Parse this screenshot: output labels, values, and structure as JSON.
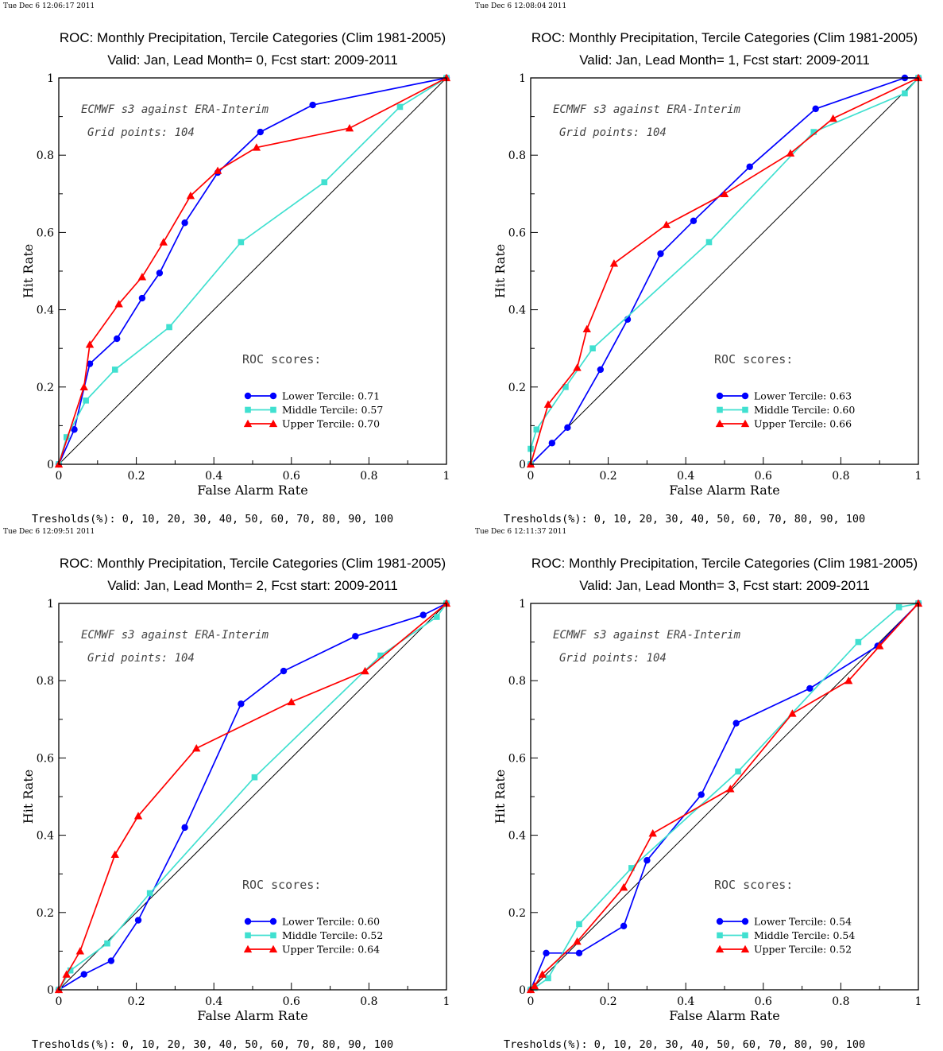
{
  "chart_data": [
    {
      "type": "line",
      "timestamp": "Tue Dec  6 12:06:17 2011",
      "title": "ROC: Monthly Precipitation, Tercile Categories (Clim 1981-2005)",
      "subtitle": "Valid: Jan, Lead Month= 0, Fcst start: 2009-2011",
      "xlabel": "False Alarm Rate",
      "ylabel": "Hit Rate",
      "xlim": [
        0,
        1
      ],
      "ylim": [
        0,
        1
      ],
      "x_ticks": [
        "0",
        "0.2",
        "0.4",
        "0.6",
        "0.8",
        "1"
      ],
      "y_ticks": [
        "0",
        "0.2",
        "0.4",
        "0.6",
        "0.8",
        "1"
      ],
      "annotation_1": "ECMWF s3 against ERA-Interim",
      "annotation_2": "Grid points:  104",
      "legend_title": "ROC scores:",
      "legend_position": "lower-right",
      "thresholds": "Tresholds(%): 0, 10, 20, 30, 40, 50, 60, 70, 80, 90, 100",
      "series": [
        {
          "label": "Lower Tercile: 0.71",
          "color": "#0000ff",
          "marker": "circle",
          "x": [
            0,
            0.04,
            0.08,
            0.15,
            0.215,
            0.26,
            0.325,
            0.41,
            0.52,
            0.655,
            1.0
          ],
          "y": [
            0,
            0.09,
            0.26,
            0.325,
            0.43,
            0.495,
            0.625,
            0.755,
            0.86,
            0.93,
            1.0
          ]
        },
        {
          "label": "Middle Tercile: 0.57",
          "color": "#40e0d0",
          "marker": "square",
          "x": [
            0,
            0.02,
            0.07,
            0.145,
            0.285,
            0.47,
            0.685,
            0.88,
            1.0
          ],
          "y": [
            0,
            0.07,
            0.165,
            0.245,
            0.355,
            0.575,
            0.73,
            0.925,
            1.0
          ]
        },
        {
          "label": "Upper Tercile: 0.70",
          "color": "#ff0000",
          "marker": "triangle",
          "x": [
            0,
            0.065,
            0.08,
            0.155,
            0.215,
            0.27,
            0.34,
            0.41,
            0.51,
            0.75,
            1.0
          ],
          "y": [
            0,
            0.2,
            0.31,
            0.415,
            0.485,
            0.575,
            0.695,
            0.76,
            0.82,
            0.87,
            1.0
          ]
        }
      ]
    },
    {
      "type": "line",
      "timestamp": "Tue Dec  6 12:08:04 2011",
      "title": "ROC: Monthly Precipitation, Tercile Categories (Clim 1981-2005)",
      "subtitle": "Valid: Jan, Lead Month= 1, Fcst start: 2009-2011",
      "xlabel": "False Alarm Rate",
      "ylabel": "Hit Rate",
      "xlim": [
        0,
        1
      ],
      "ylim": [
        0,
        1
      ],
      "x_ticks": [
        "0",
        "0.2",
        "0.4",
        "0.6",
        "0.8",
        "1"
      ],
      "y_ticks": [
        "0",
        "0.2",
        "0.4",
        "0.6",
        "0.8",
        "1"
      ],
      "annotation_1": "ECMWF s3 against ERA-Interim",
      "annotation_2": "Grid points:  104",
      "legend_title": "ROC scores:",
      "legend_position": "lower-right",
      "thresholds": "Tresholds(%): 0, 10, 20, 30, 40, 50, 60, 70, 80, 90, 100",
      "series": [
        {
          "label": "Lower Tercile: 0.63",
          "color": "#0000ff",
          "marker": "circle",
          "x": [
            0,
            0.055,
            0.095,
            0.18,
            0.25,
            0.335,
            0.42,
            0.565,
            0.735,
            0.965,
            1.0
          ],
          "y": [
            0,
            0.055,
            0.095,
            0.245,
            0.375,
            0.545,
            0.63,
            0.77,
            0.92,
            1.0,
            1.0
          ]
        },
        {
          "label": "Middle Tercile: 0.60",
          "color": "#40e0d0",
          "marker": "square",
          "x": [
            0,
            0.0,
            0.015,
            0.09,
            0.16,
            0.46,
            0.73,
            0.965,
            1.0
          ],
          "y": [
            0,
            0.04,
            0.09,
            0.2,
            0.3,
            0.575,
            0.86,
            0.96,
            1.0
          ]
        },
        {
          "label": "Upper Tercile: 0.66",
          "color": "#ff0000",
          "marker": "triangle",
          "x": [
            0,
            0.045,
            0.12,
            0.145,
            0.215,
            0.35,
            0.5,
            0.67,
            0.78,
            1.0
          ],
          "y": [
            0,
            0.155,
            0.25,
            0.35,
            0.52,
            0.62,
            0.7,
            0.805,
            0.895,
            1.0
          ]
        }
      ]
    },
    {
      "type": "line",
      "timestamp": "Tue Dec  6 12:09:51 2011",
      "title": "ROC: Monthly Precipitation, Tercile Categories (Clim 1981-2005)",
      "subtitle": "Valid: Jan, Lead Month= 2, Fcst start: 2009-2011",
      "xlabel": "False Alarm Rate",
      "ylabel": "Hit Rate",
      "xlim": [
        0,
        1
      ],
      "ylim": [
        0,
        1
      ],
      "x_ticks": [
        "0",
        "0.2",
        "0.4",
        "0.6",
        "0.8",
        "1"
      ],
      "y_ticks": [
        "0",
        "0.2",
        "0.4",
        "0.6",
        "0.8",
        "1"
      ],
      "annotation_1": "ECMWF s3 against ERA-Interim",
      "annotation_2": "Grid points:  104",
      "legend_title": "ROC scores:",
      "legend_position": "lower-right",
      "thresholds": "Tresholds(%): 0, 10, 20, 30, 40, 50, 60, 70, 80, 90, 100",
      "series": [
        {
          "label": "Lower Tercile: 0.60",
          "color": "#0000ff",
          "marker": "circle",
          "x": [
            0,
            0.065,
            0.135,
            0.205,
            0.325,
            0.47,
            0.58,
            0.765,
            0.94,
            1.0
          ],
          "y": [
            0,
            0.04,
            0.075,
            0.18,
            0.42,
            0.74,
            0.825,
            0.915,
            0.97,
            1.0
          ]
        },
        {
          "label": "Middle Tercile: 0.52",
          "color": "#40e0d0",
          "marker": "square",
          "x": [
            0,
            0.03,
            0.125,
            0.235,
            0.505,
            0.83,
            0.975,
            1.0
          ],
          "y": [
            0,
            0.05,
            0.12,
            0.25,
            0.55,
            0.865,
            0.965,
            1.0
          ]
        },
        {
          "label": "Upper Tercile: 0.64",
          "color": "#ff0000",
          "marker": "triangle",
          "x": [
            0,
            0.02,
            0.055,
            0.145,
            0.205,
            0.355,
            0.6,
            0.79,
            1.0
          ],
          "y": [
            0,
            0.04,
            0.1,
            0.35,
            0.45,
            0.625,
            0.745,
            0.825,
            1.0
          ]
        }
      ]
    },
    {
      "type": "line",
      "timestamp": "Tue Dec  6 12:11:37 2011",
      "title": "ROC: Monthly Precipitation, Tercile Categories (Clim 1981-2005)",
      "subtitle": "Valid: Jan, Lead Month= 3, Fcst start: 2009-2011",
      "xlabel": "False Alarm Rate",
      "ylabel": "Hit Rate",
      "xlim": [
        0,
        1
      ],
      "ylim": [
        0,
        1
      ],
      "x_ticks": [
        "0",
        "0.2",
        "0.4",
        "0.6",
        "0.8",
        "1"
      ],
      "y_ticks": [
        "0",
        "0.2",
        "0.4",
        "0.6",
        "0.8",
        "1"
      ],
      "annotation_1": "ECMWF s3 against ERA-Interim",
      "annotation_2": "Grid points:  104",
      "legend_title": "ROC scores:",
      "legend_position": "lower-right",
      "thresholds": "Tresholds(%): 0, 10, 20, 30, 40, 50, 60, 70, 80, 90, 100",
      "series": [
        {
          "label": "Lower Tercile: 0.54",
          "color": "#0000ff",
          "marker": "circle",
          "x": [
            0,
            0.04,
            0.125,
            0.24,
            0.3,
            0.44,
            0.53,
            0.72,
            0.895,
            1.0
          ],
          "y": [
            0,
            0.095,
            0.095,
            0.165,
            0.335,
            0.505,
            0.69,
            0.78,
            0.89,
            1.0
          ]
        },
        {
          "label": "Middle Tercile: 0.54",
          "color": "#40e0d0",
          "marker": "square",
          "x": [
            0,
            0.01,
            0.045,
            0.125,
            0.26,
            0.535,
            0.845,
            0.95,
            1.0
          ],
          "y": [
            0,
            0.005,
            0.03,
            0.17,
            0.315,
            0.565,
            0.9,
            0.99,
            1.0
          ]
        },
        {
          "label": "Upper Tercile: 0.52",
          "color": "#ff0000",
          "marker": "triangle",
          "x": [
            0,
            0.01,
            0.03,
            0.12,
            0.24,
            0.315,
            0.515,
            0.675,
            0.82,
            0.9,
            1.0
          ],
          "y": [
            0,
            0.01,
            0.04,
            0.125,
            0.265,
            0.405,
            0.52,
            0.715,
            0.8,
            0.89,
            1.0
          ]
        }
      ]
    }
  ]
}
